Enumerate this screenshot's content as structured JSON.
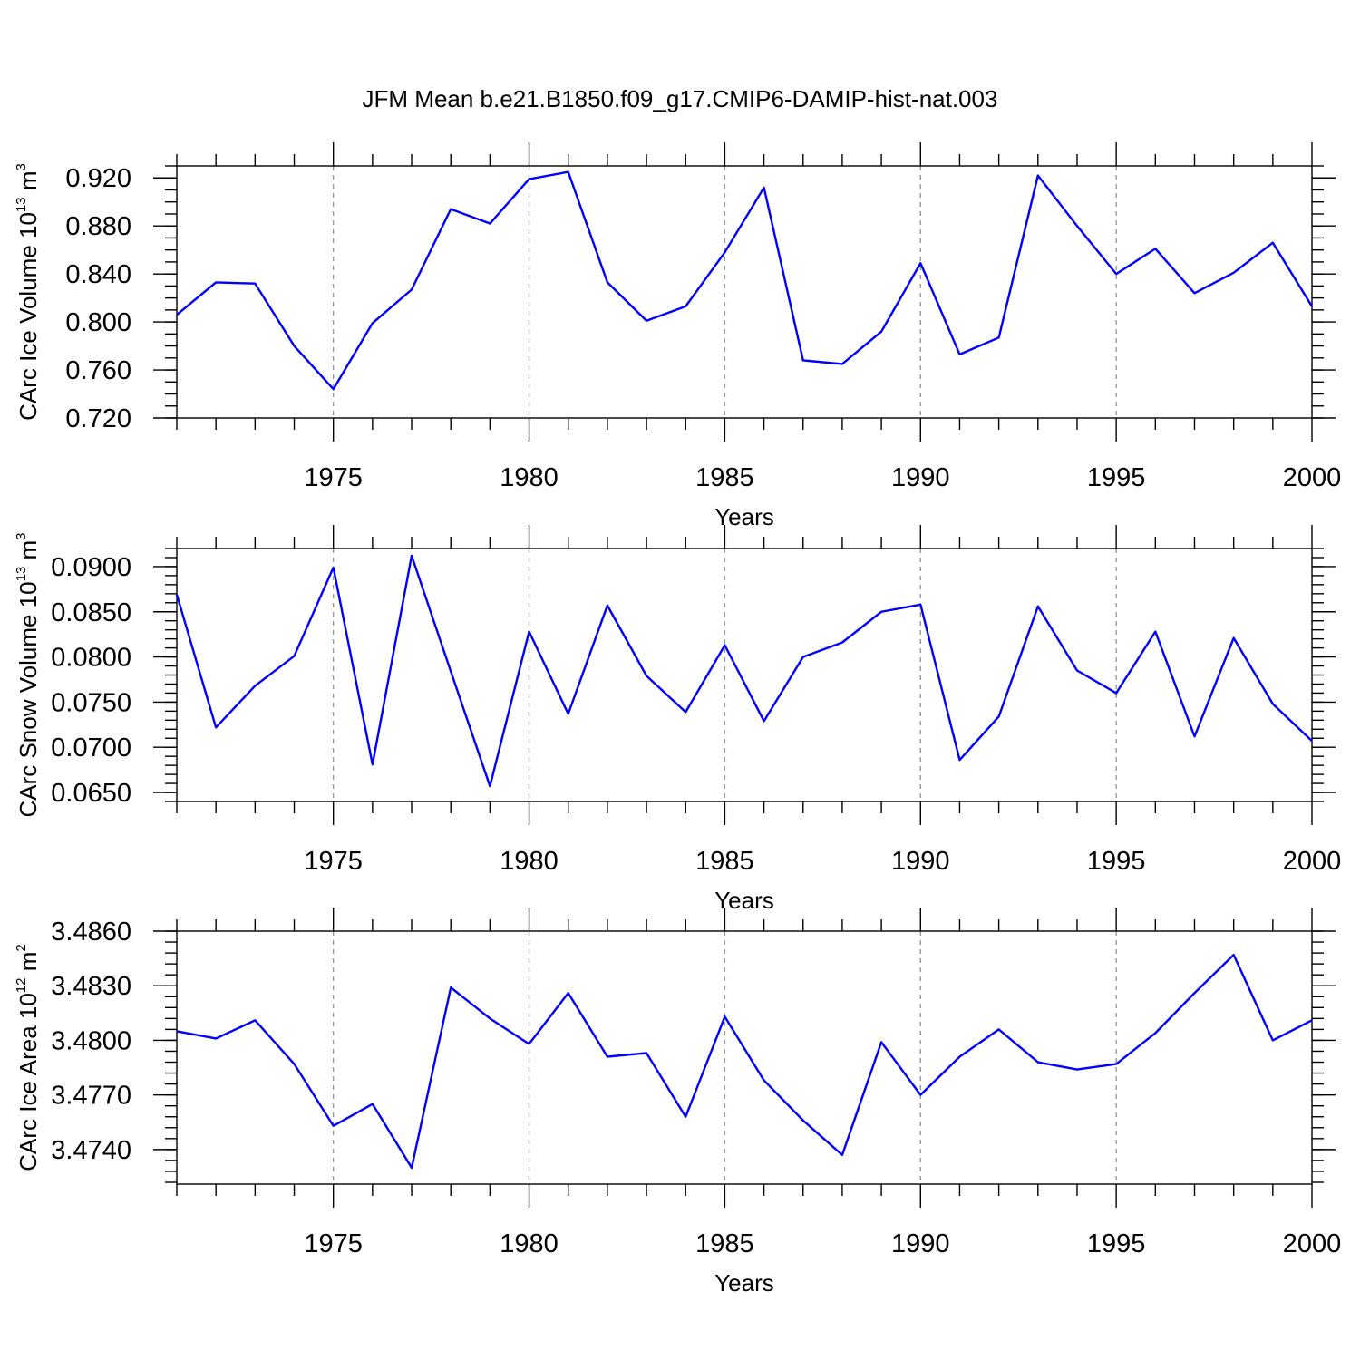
{
  "title": "JFM Mean b.e21.B1850.f09_g17.CMIP6-DAMIP-hist-nat.003",
  "colors": {
    "series": "#0000ff",
    "grid": "#999999",
    "axis": "#000000"
  },
  "chart_data": [
    {
      "type": "line",
      "title": "",
      "xlabel": "Years",
      "ylabel": {
        "text": "CArc Ice Volume 10",
        "exp": "13",
        "unit": " m",
        "unit_exp": "3"
      },
      "xlim": [
        1971,
        2000
      ],
      "ylim": [
        0.72,
        0.93
      ],
      "xticks": [
        1975,
        1980,
        1985,
        1990,
        1995,
        2000
      ],
      "xtick_labels": [
        "1975",
        "1980",
        "1985",
        "1990",
        "1995",
        "2000"
      ],
      "yticks": [
        0.72,
        0.76,
        0.8,
        0.84,
        0.88,
        0.92
      ],
      "ytick_labels": [
        "0.720",
        "0.760",
        "0.800",
        "0.840",
        "0.880",
        "0.920"
      ],
      "y_minor_step": 0.01,
      "grid": "vertical dashed at major x ticks",
      "series": [
        {
          "x": [
            1971,
            1972,
            1973,
            1974,
            1975,
            1976,
            1977,
            1978,
            1979,
            1980,
            1981,
            1982,
            1983,
            1984,
            1985,
            1986,
            1987,
            1988,
            1989,
            1990,
            1991,
            1992,
            1993,
            1994,
            1995,
            1996,
            1997,
            1998,
            1999,
            2000
          ],
          "values": [
            0.806,
            0.833,
            0.832,
            0.78,
            0.744,
            0.799,
            0.827,
            0.894,
            0.882,
            0.919,
            0.925,
            0.833,
            0.801,
            0.813,
            0.858,
            0.912,
            0.768,
            0.765,
            0.792,
            0.849,
            0.773,
            0.787,
            0.922,
            0.88,
            0.84,
            0.861,
            0.824,
            0.841,
            0.866,
            0.813
          ]
        }
      ]
    },
    {
      "type": "line",
      "title": "",
      "xlabel": "Years",
      "ylabel": {
        "text": "CArc Snow Volume 10",
        "exp": "13",
        "unit": " m",
        "unit_exp": "3"
      },
      "xlim": [
        1971,
        2000
      ],
      "ylim": [
        0.064,
        0.092
      ],
      "xticks": [
        1975,
        1980,
        1985,
        1990,
        1995,
        2000
      ],
      "xtick_labels": [
        "1975",
        "1980",
        "1985",
        "1990",
        "1995",
        "2000"
      ],
      "yticks": [
        0.065,
        0.07,
        0.075,
        0.08,
        0.085,
        0.09
      ],
      "ytick_labels": [
        "0.0650",
        "0.0700",
        "0.0750",
        "0.0800",
        "0.0850",
        "0.0900"
      ],
      "y_minor_step": 0.001,
      "grid": "vertical dashed at major x ticks",
      "series": [
        {
          "x": [
            1971,
            1972,
            1973,
            1974,
            1975,
            1976,
            1977,
            1978,
            1979,
            1980,
            1981,
            1982,
            1983,
            1984,
            1985,
            1986,
            1987,
            1988,
            1989,
            1990,
            1991,
            1992,
            1993,
            1994,
            1995,
            1996,
            1997,
            1998,
            1999,
            2000
          ],
          "values": [
            0.0869,
            0.0722,
            0.0768,
            0.0801,
            0.0899,
            0.0681,
            0.0912,
            0.0784,
            0.0657,
            0.0828,
            0.0737,
            0.0857,
            0.0779,
            0.0739,
            0.0813,
            0.0729,
            0.08,
            0.0816,
            0.085,
            0.0858,
            0.0686,
            0.0734,
            0.0856,
            0.0785,
            0.076,
            0.0828,
            0.0712,
            0.0821,
            0.0748,
            0.0707
          ]
        }
      ]
    },
    {
      "type": "line",
      "title": "",
      "xlabel": "Years",
      "ylabel": {
        "text": "CArc Ice Area 10",
        "exp": "12",
        "unit": " m",
        "unit_exp": "2"
      },
      "xlim": [
        1971,
        2000
      ],
      "ylim": [
        3.4721,
        3.486
      ],
      "xticks": [
        1975,
        1980,
        1985,
        1990,
        1995,
        2000
      ],
      "xtick_labels": [
        "1975",
        "1980",
        "1985",
        "1990",
        "1995",
        "2000"
      ],
      "yticks": [
        3.474,
        3.477,
        3.48,
        3.483,
        3.486
      ],
      "ytick_labels": [
        "3.4740",
        "3.4770",
        "3.4800",
        "3.4830",
        "3.4860"
      ],
      "y_minor_step": 0.0006,
      "grid": "vertical dashed at major x ticks",
      "series": [
        {
          "x": [
            1971,
            1972,
            1973,
            1974,
            1975,
            1976,
            1977,
            1978,
            1979,
            1980,
            1981,
            1982,
            1983,
            1984,
            1985,
            1986,
            1987,
            1988,
            1989,
            1990,
            1991,
            1992,
            1993,
            1994,
            1995,
            1996,
            1997,
            1998,
            1999,
            2000
          ],
          "values": [
            3.4805,
            3.4801,
            3.4811,
            3.4787,
            3.4753,
            3.4765,
            3.473,
            3.4829,
            3.4812,
            3.4798,
            3.4826,
            3.4791,
            3.4793,
            3.4758,
            3.4813,
            3.4778,
            3.4756,
            3.4737,
            3.4799,
            3.477,
            3.4791,
            3.4806,
            3.4788,
            3.4784,
            3.4787,
            3.4804,
            3.4826,
            3.4847,
            3.48,
            3.4811
          ]
        }
      ]
    }
  ]
}
